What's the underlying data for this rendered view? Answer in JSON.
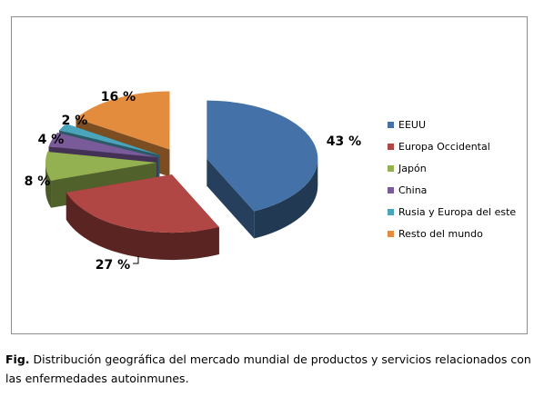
{
  "chart_data": {
    "type": "pie",
    "style": "3d-exploded",
    "categories": [
      "EEUU",
      "Europa Occidental",
      "Japón",
      "China",
      "Rusia y Europa del este",
      "Resto del mundo"
    ],
    "values": [
      43,
      27,
      8,
      4,
      2,
      16
    ],
    "unit": "%",
    "data_labels": [
      "43 %",
      "27 %",
      "8 %",
      "4 %",
      "2 %",
      "16 %"
    ],
    "colors": [
      "#4472a8",
      "#b14744",
      "#93b150",
      "#7a5b9a",
      "#4aa4ba",
      "#e48c3e"
    ],
    "legend_position": "right",
    "title": ""
  },
  "caption": {
    "prefix": "Fig.",
    "text": "Distribución geográfica del mercado mundial de productos y servicios relacionados con las enfermedades autoinmunes."
  }
}
